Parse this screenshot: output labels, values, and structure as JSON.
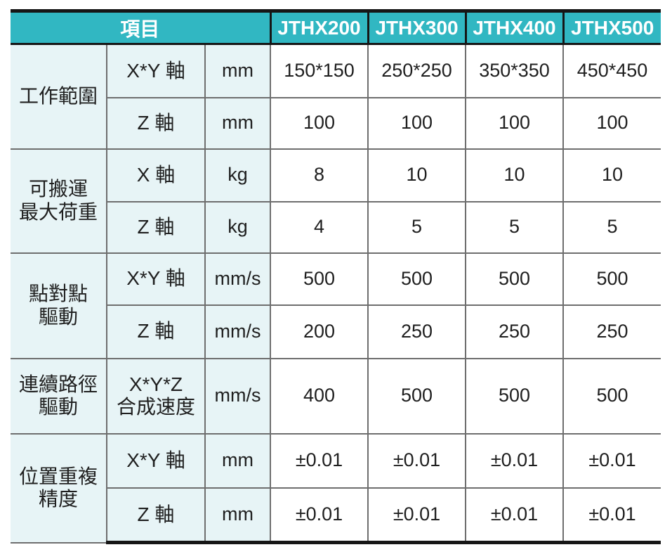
{
  "table": {
    "header": {
      "item_label": "項目",
      "models": [
        "JTHX200",
        "JTHX300",
        "JTHX400",
        "JTHX500"
      ]
    },
    "groups": [
      {
        "name_lines": [
          "工作範圍"
        ],
        "rows": [
          {
            "axis_lines": [
              "X*Y 軸"
            ],
            "unit": "mm",
            "values": [
              "150*150",
              "250*250",
              "350*350",
              "450*450"
            ]
          },
          {
            "axis_lines": [
              "Z 軸"
            ],
            "unit": "mm",
            "values": [
              "100",
              "100",
              "100",
              "100"
            ]
          }
        ]
      },
      {
        "name_lines": [
          "可搬運",
          "最大荷重"
        ],
        "rows": [
          {
            "axis_lines": [
              "X 軸"
            ],
            "unit": "kg",
            "values": [
              "8",
              "10",
              "10",
              "10"
            ]
          },
          {
            "axis_lines": [
              "Z 軸"
            ],
            "unit": "kg",
            "values": [
              "4",
              "5",
              "5",
              "5"
            ]
          }
        ]
      },
      {
        "name_lines": [
          "點對點",
          "驅動"
        ],
        "rows": [
          {
            "axis_lines": [
              "X*Y 軸"
            ],
            "unit": "mm/s",
            "values": [
              "500",
              "500",
              "500",
              "500"
            ]
          },
          {
            "axis_lines": [
              "Z 軸"
            ],
            "unit": "mm/s",
            "values": [
              "200",
              "250",
              "250",
              "250"
            ]
          }
        ]
      },
      {
        "name_lines": [
          "連續路徑",
          "驅動"
        ],
        "rows": [
          {
            "axis_lines": [
              "X*Y*Z",
              "合成速度"
            ],
            "unit": "mm/s",
            "values": [
              "400",
              "500",
              "500",
              "500"
            ]
          }
        ]
      },
      {
        "name_lines": [
          "位置重複",
          "精度"
        ],
        "rows": [
          {
            "axis_lines": [
              "X*Y 軸"
            ],
            "unit": "mm",
            "values": [
              "±0.01",
              "±0.01",
              "±0.01",
              "±0.01"
            ]
          },
          {
            "axis_lines": [
              "Z 軸"
            ],
            "unit": "mm",
            "values": [
              "±0.01",
              "±0.01",
              "±0.01",
              "±0.01"
            ]
          }
        ]
      }
    ],
    "colors": {
      "header_bg": "#31b7c2",
      "label_bg": "#e7f4f6",
      "line_gray": "#6e6e6e",
      "line_dark": "#161616",
      "header_text": "#ffffff",
      "body_text": "#1f1f1f"
    }
  }
}
